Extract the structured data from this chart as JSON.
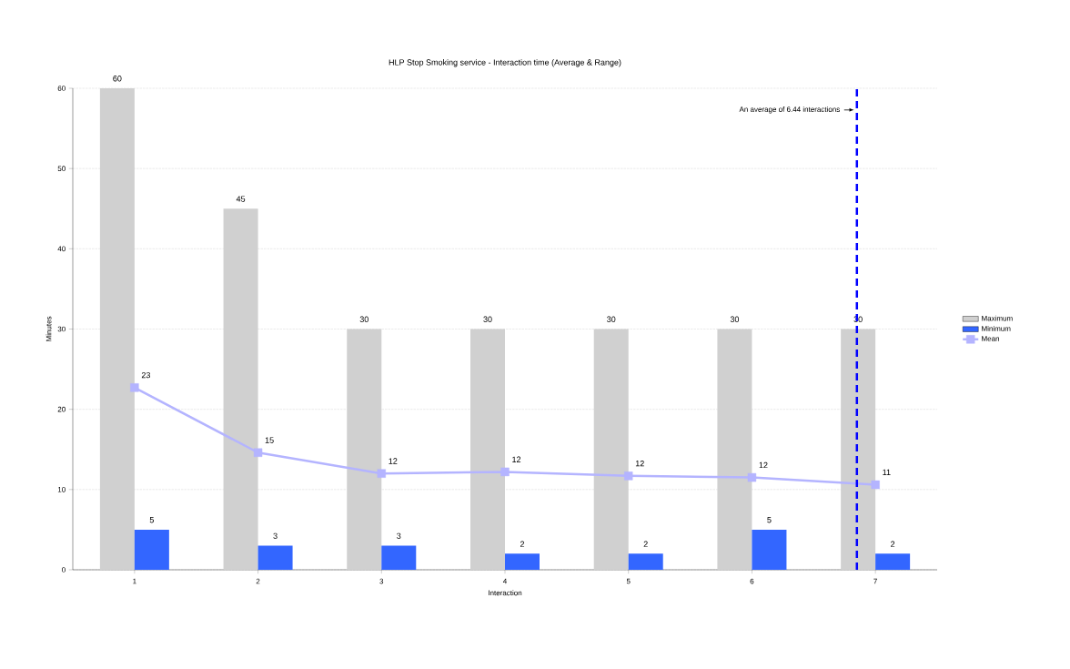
{
  "chart_data": {
    "type": "bar",
    "title": "HLP Stop Smoking service - Interaction time (Average & Range)",
    "xlabel": "Interaction",
    "ylabel": "Minutes",
    "x": [
      1,
      2,
      3,
      4,
      5,
      6,
      7
    ],
    "xlim": [
      0.5,
      7.5
    ],
    "xticks": [
      1,
      2,
      3,
      4,
      5,
      6,
      7
    ],
    "ylim": [
      0,
      60
    ],
    "yticks": [
      0,
      10,
      20,
      30,
      40,
      50,
      60
    ],
    "grid": "y",
    "legend": "right",
    "series": [
      {
        "name": "Maximum",
        "color": "#d0d0d0",
        "values": [
          60,
          45,
          30,
          30,
          30,
          30,
          30
        ],
        "value_labels": [
          "60",
          "45",
          "30",
          "30",
          "30",
          "30",
          "30"
        ]
      },
      {
        "name": "Minimum",
        "color": "#3366ff",
        "values": [
          5,
          3,
          3,
          2,
          2,
          5,
          2
        ],
        "value_labels": [
          "5",
          "3",
          "3",
          "2",
          "2",
          "5",
          "2"
        ]
      },
      {
        "name": "Mean",
        "type": "line",
        "color": "#b4b4ff",
        "marker": "square",
        "values": [
          22.7,
          14.6,
          12.0,
          12.2,
          11.7,
          11.5,
          10.6
        ],
        "value_labels": [
          "23",
          "15",
          "12",
          "12",
          "12",
          "12",
          "11"
        ]
      }
    ],
    "ref_lines": [
      {
        "axis": "x",
        "value": 6.85,
        "label": "An average of 6.44 interactions",
        "color": "#0000ff",
        "line_style": "dashed"
      }
    ]
  }
}
